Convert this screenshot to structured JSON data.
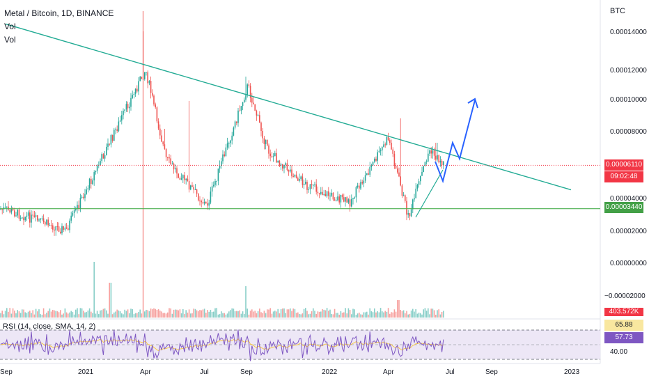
{
  "header": {
    "symbol_line": "Metal / Bitcoin, 1D, BINANCE",
    "vol1": "Vol",
    "vol2": "Vol"
  },
  "price_axis": {
    "unit": "BTC",
    "ticks": [
      "0.00014000",
      "0.00012000",
      "0.00010000",
      "0.00008000",
      "0.00004000",
      "0.00002000",
      "0.00000000",
      "−0.00002000"
    ]
  },
  "badges": {
    "last_price": "0.00006110",
    "countdown": "09:02:48",
    "support_level": "0.00003440",
    "volume_value": "403.572K"
  },
  "time_axis": {
    "labels": [
      "Sep",
      "2021",
      "Apr",
      "Jul",
      "Sep",
      "2022",
      "Apr",
      "Jul",
      "Sep",
      "2023"
    ]
  },
  "rsi": {
    "title": "RSI (14, close, SMA, 14, 2)",
    "badges": [
      "65.88",
      "57.73"
    ],
    "level_label": "40.00"
  },
  "colors": {
    "up": "#26a69a",
    "down": "#ef5350",
    "trendline": "#22ab94",
    "support": "#4caf50",
    "projection": "#2962ff",
    "rsi_line": "#7e57c2",
    "rsi_band": "#ede7f6",
    "rsi_signal": "#f7c948",
    "last_price_badge": "#f23645",
    "support_badge": "#43a047",
    "rsi_badge1": "#f9e79f",
    "rsi_badge2": "#7e57c2"
  },
  "chart_data": {
    "type": "candlestick",
    "x_range": [
      "2020-09",
      "2023-01"
    ],
    "y_range": [
      -2e-05,
      0.00015
    ],
    "key_points": [
      {
        "date": "2020-09",
        "price": 3.4e-05
      },
      {
        "date": "2020-12",
        "price": 2.1e-05
      },
      {
        "date": "2021-03-31",
        "price": 0.00012
      },
      {
        "date": "2021-05",
        "price": 6.5e-05
      },
      {
        "date": "2021-07",
        "price": 3.6e-05
      },
      {
        "date": "2021-09",
        "price": 0.00011
      },
      {
        "date": "2021-10",
        "price": 7e-05
      },
      {
        "date": "2021-12",
        "price": 4.8e-05
      },
      {
        "date": "2022-02",
        "price": 3.8e-05
      },
      {
        "date": "2022-04",
        "price": 7.8e-05
      },
      {
        "date": "2022-05",
        "price": 2.9e-05
      },
      {
        "date": "2022-06",
        "price": 7e-05
      },
      {
        "date": "2022-06-25",
        "price": 6.11e-05
      }
    ],
    "annotations": {
      "trendline_start": {
        "date": "2020-09",
        "price": 0.000148
      },
      "trendline_end": {
        "date": "2023-01",
        "price": 4.6e-05
      },
      "support": 3.44e-05,
      "last_price": 6.11e-05
    }
  }
}
